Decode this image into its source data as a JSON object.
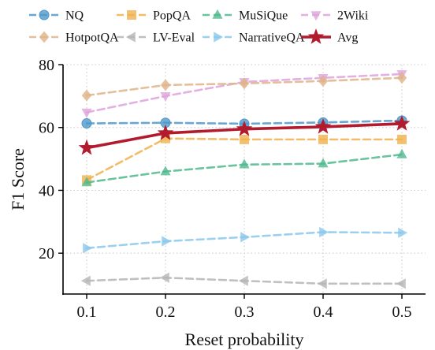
{
  "chart_data": {
    "type": "line",
    "title": "",
    "xlabel": "Reset probability",
    "ylabel": "F1 Score",
    "x": [
      0.1,
      0.2,
      0.3,
      0.4,
      0.5
    ],
    "x_tick_labels": [
      "0.1",
      "0.2",
      "0.3",
      "0.4",
      "0.5"
    ],
    "xlim": [
      0.07,
      0.53
    ],
    "ylim": [
      7,
      80
    ],
    "yticks": [
      20,
      40,
      60,
      80
    ],
    "grid": true,
    "legend_position": "top",
    "series": [
      {
        "name": "NQ",
        "values": [
          61.3,
          61.5,
          61.2,
          61.6,
          62.2
        ],
        "color": "#4e98c9",
        "marker": "circle",
        "dashed": true
      },
      {
        "name": "PopQA",
        "values": [
          43.3,
          56.5,
          56.2,
          56.2,
          56.2
        ],
        "color": "#f0b14d",
        "marker": "square",
        "dashed": true
      },
      {
        "name": "MuSiQue",
        "values": [
          42.5,
          46.0,
          48.2,
          48.5,
          51.4
        ],
        "color": "#4fb98d",
        "marker": "triangle-up",
        "dashed": true
      },
      {
        "name": "2Wiki",
        "values": [
          64.8,
          70.0,
          74.5,
          75.8,
          77.0
        ],
        "color": "#dea2dc",
        "marker": "triangle-down",
        "dashed": true
      },
      {
        "name": "HotpotQA",
        "values": [
          70.2,
          73.5,
          74.0,
          74.8,
          75.8
        ],
        "color": "#dfb48a",
        "marker": "diamond",
        "dashed": true
      },
      {
        "name": "LV-Eval",
        "values": [
          11.2,
          12.2,
          11.2,
          10.3,
          10.3
        ],
        "color": "#b5b5b5",
        "marker": "triangle-left",
        "dashed": true
      },
      {
        "name": "NarrativeQA",
        "values": [
          21.6,
          23.8,
          25.1,
          26.7,
          26.5
        ],
        "color": "#8ac8ec",
        "marker": "triangle-right",
        "dashed": true
      },
      {
        "name": "Avg",
        "values": [
          53.5,
          58.2,
          59.5,
          60.2,
          61.2
        ],
        "color": "#b21a2e",
        "marker": "star",
        "dashed": false
      }
    ]
  }
}
